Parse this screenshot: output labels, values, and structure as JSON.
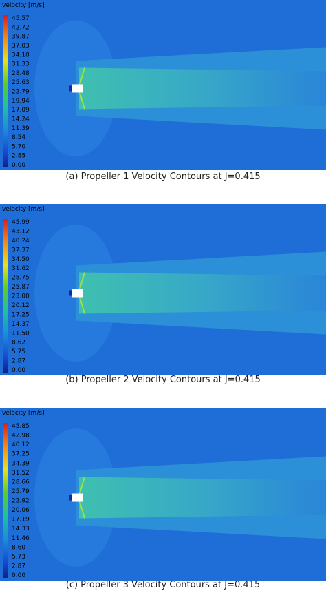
{
  "panels": [
    {
      "legend_title": "velocity [m/s]",
      "legend_labels": [
        "45.57",
        "42.72",
        "39.87",
        "37.03",
        "34.18",
        "31.33",
        "28.48",
        "25.63",
        "22.79",
        "19.94",
        "17.09",
        "14.24",
        "11.39",
        "8.54",
        "5.70",
        "2.85",
        "0.00"
      ],
      "caption": "(a) Propeller 1 Velocity Contours at J=0.415"
    },
    {
      "legend_title": "velocity [m/s]",
      "legend_labels": [
        "45.99",
        "43.12",
        "40.24",
        "37.37",
        "34.50",
        "31.62",
        "28.75",
        "25.87",
        "23.00",
        "20.12",
        "17.25",
        "14.37",
        "11.50",
        "8.62",
        "5.75",
        "2.87",
        "0.00"
      ],
      "caption": "(b) Propeller 2 Velocity Contours at J=0.415"
    },
    {
      "legend_title": "velocity [m/s]",
      "legend_labels": [
        "45.85",
        "42.98",
        "40.12",
        "37.25",
        "34.39",
        "31.52",
        "28.66",
        "25.79",
        "22.92",
        "20.06",
        "17.19",
        "14.33",
        "11.46",
        "8.60",
        "5.73",
        "2.87",
        "0.00"
      ],
      "caption": "(c) Propeller 3 Velocity Contours at J=0.415"
    }
  ]
}
